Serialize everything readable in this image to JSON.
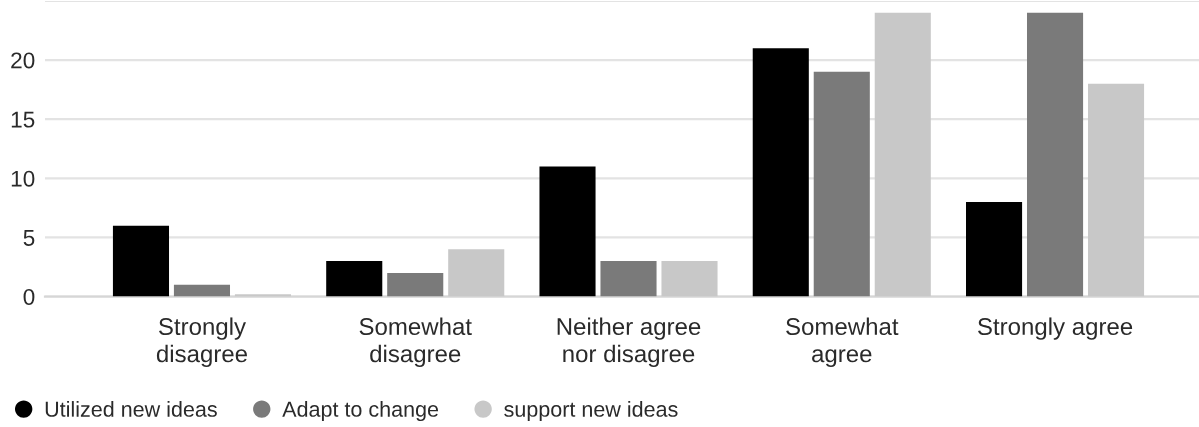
{
  "chart_data": {
    "type": "bar",
    "categories": [
      "Strongly\ndisagree",
      "Somewhat\ndisagree",
      "Neither agree\nnor disagree",
      "Somewhat\nagree",
      "Strongly agree"
    ],
    "series": [
      {
        "name": "Utilized new ideas",
        "color": "#000000",
        "values": [
          6,
          3,
          11,
          21,
          8
        ]
      },
      {
        "name": "Adapt to change",
        "color": "#7a7a7a",
        "values": [
          1,
          2,
          3,
          19,
          24
        ]
      },
      {
        "name": "support new ideas",
        "color": "#c8c8c8",
        "values": [
          0.2,
          4,
          3,
          24,
          18
        ]
      }
    ],
    "ylim": [
      0,
      25
    ],
    "yticks": [
      0,
      5,
      10,
      15,
      20,
      {
        "value": 25,
        "label": null
      }
    ],
    "grid": "y",
    "legend": "bottom left"
  }
}
